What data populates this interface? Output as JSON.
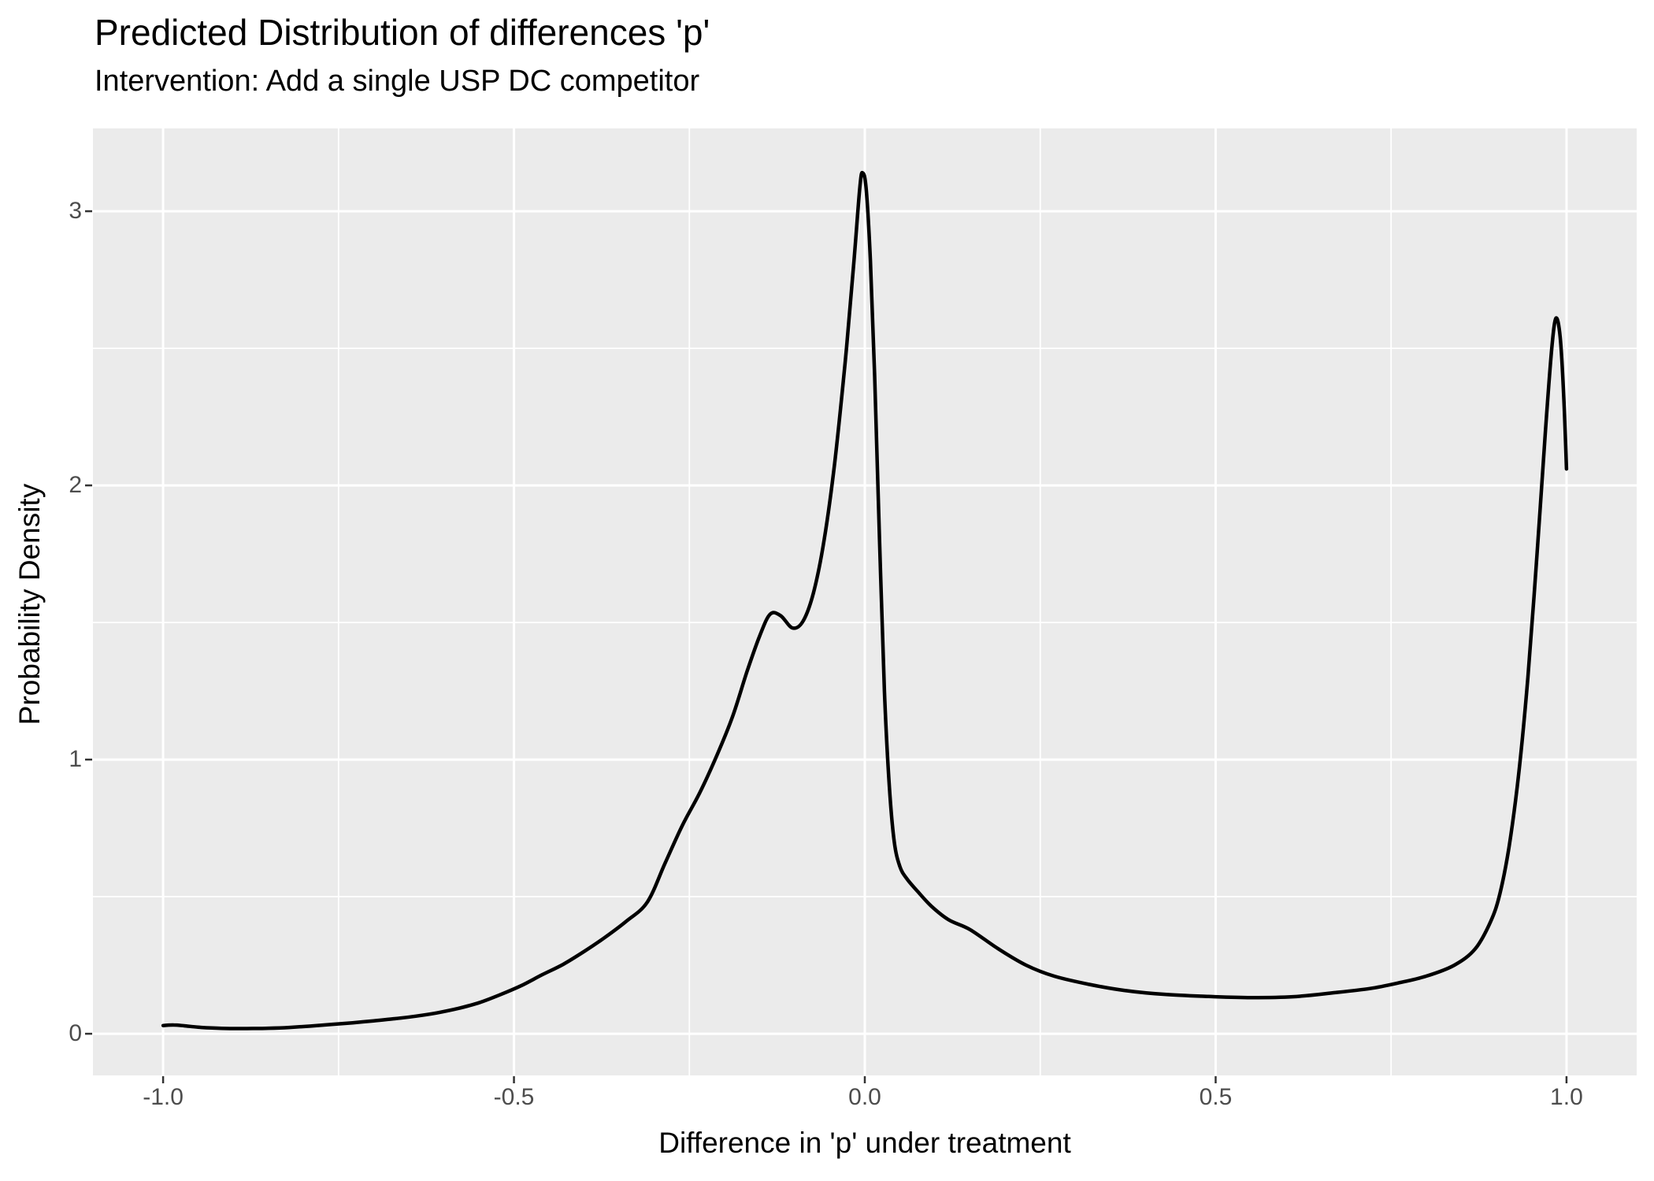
{
  "chart_data": {
    "type": "line",
    "title": "Predicted Distribution of differences 'p'",
    "subtitle": "Intervention: Add a single USP DC competitor",
    "xlabel": "Difference in 'p' under treatment",
    "ylabel": "Probability Density",
    "xlim": [
      -1.1,
      1.1
    ],
    "ylim": [
      -0.152,
      3.302
    ],
    "grid": true,
    "legend_position": "none",
    "x_axis": {
      "tick_values": [
        -1.0,
        -0.5,
        0.0,
        0.5,
        1.0
      ],
      "tick_labels": [
        "-1.0",
        "-0.5",
        "0.0",
        "0.5",
        "1.0"
      ],
      "minor_tick_values": [
        -0.75,
        -0.25,
        0.25,
        0.75
      ]
    },
    "y_axis": {
      "tick_values": [
        0,
        1,
        2,
        3
      ],
      "tick_labels": [
        "0",
        "1",
        "2",
        "3"
      ],
      "minor_tick_values": [
        0.5,
        1.5,
        2.5
      ]
    },
    "series": [
      {
        "name": "density",
        "points": [
          [
            -1.0,
            0.03
          ],
          [
            -0.985,
            0.032
          ],
          [
            -0.97,
            0.029
          ],
          [
            -0.95,
            0.024
          ],
          [
            -0.93,
            0.021
          ],
          [
            -0.905,
            0.019
          ],
          [
            -0.88,
            0.019
          ],
          [
            -0.85,
            0.02
          ],
          [
            -0.82,
            0.023
          ],
          [
            -0.79,
            0.028
          ],
          [
            -0.76,
            0.034
          ],
          [
            -0.73,
            0.04
          ],
          [
            -0.7,
            0.047
          ],
          [
            -0.67,
            0.055
          ],
          [
            -0.64,
            0.064
          ],
          [
            -0.61,
            0.076
          ],
          [
            -0.58,
            0.092
          ],
          [
            -0.55,
            0.113
          ],
          [
            -0.52,
            0.142
          ],
          [
            -0.49,
            0.175
          ],
          [
            -0.46,
            0.215
          ],
          [
            -0.43,
            0.253
          ],
          [
            -0.4,
            0.3
          ],
          [
            -0.37,
            0.352
          ],
          [
            -0.34,
            0.41
          ],
          [
            -0.31,
            0.48
          ],
          [
            -0.285,
            0.62
          ],
          [
            -0.26,
            0.76
          ],
          [
            -0.235,
            0.88
          ],
          [
            -0.21,
            1.02
          ],
          [
            -0.188,
            1.16
          ],
          [
            -0.168,
            1.32
          ],
          [
            -0.15,
            1.45
          ],
          [
            -0.135,
            1.53
          ],
          [
            -0.12,
            1.525
          ],
          [
            -0.103,
            1.48
          ],
          [
            -0.088,
            1.505
          ],
          [
            -0.073,
            1.61
          ],
          [
            -0.058,
            1.8
          ],
          [
            -0.043,
            2.08
          ],
          [
            -0.028,
            2.45
          ],
          [
            -0.016,
            2.8
          ],
          [
            -0.007,
            3.09
          ],
          [
            -0.003,
            3.14
          ],
          [
            0.002,
            3.08
          ],
          [
            0.008,
            2.82
          ],
          [
            0.014,
            2.4
          ],
          [
            0.021,
            1.8
          ],
          [
            0.028,
            1.25
          ],
          [
            0.035,
            0.9
          ],
          [
            0.042,
            0.7
          ],
          [
            0.05,
            0.61
          ],
          [
            0.06,
            0.565
          ],
          [
            0.075,
            0.52
          ],
          [
            0.095,
            0.465
          ],
          [
            0.12,
            0.415
          ],
          [
            0.15,
            0.38
          ],
          [
            0.19,
            0.31
          ],
          [
            0.23,
            0.25
          ],
          [
            0.27,
            0.21
          ],
          [
            0.32,
            0.18
          ],
          [
            0.37,
            0.158
          ],
          [
            0.43,
            0.143
          ],
          [
            0.49,
            0.136
          ],
          [
            0.55,
            0.132
          ],
          [
            0.61,
            0.135
          ],
          [
            0.67,
            0.15
          ],
          [
            0.72,
            0.165
          ],
          [
            0.76,
            0.185
          ],
          [
            0.8,
            0.21
          ],
          [
            0.84,
            0.25
          ],
          [
            0.87,
            0.31
          ],
          [
            0.892,
            0.41
          ],
          [
            0.905,
            0.51
          ],
          [
            0.918,
            0.68
          ],
          [
            0.932,
            0.95
          ],
          [
            0.945,
            1.3
          ],
          [
            0.958,
            1.75
          ],
          [
            0.97,
            2.2
          ],
          [
            0.979,
            2.5
          ],
          [
            0.985,
            2.61
          ],
          [
            0.991,
            2.54
          ],
          [
            0.996,
            2.33
          ],
          [
            1.0,
            2.06
          ]
        ]
      }
    ],
    "colors": {
      "panel_background": "#EBEBEB",
      "gridline": "#FFFFFF",
      "line": "#000000",
      "tick_label": "#4D4D4D",
      "tick_mark": "#333333",
      "text": "#000000"
    }
  }
}
